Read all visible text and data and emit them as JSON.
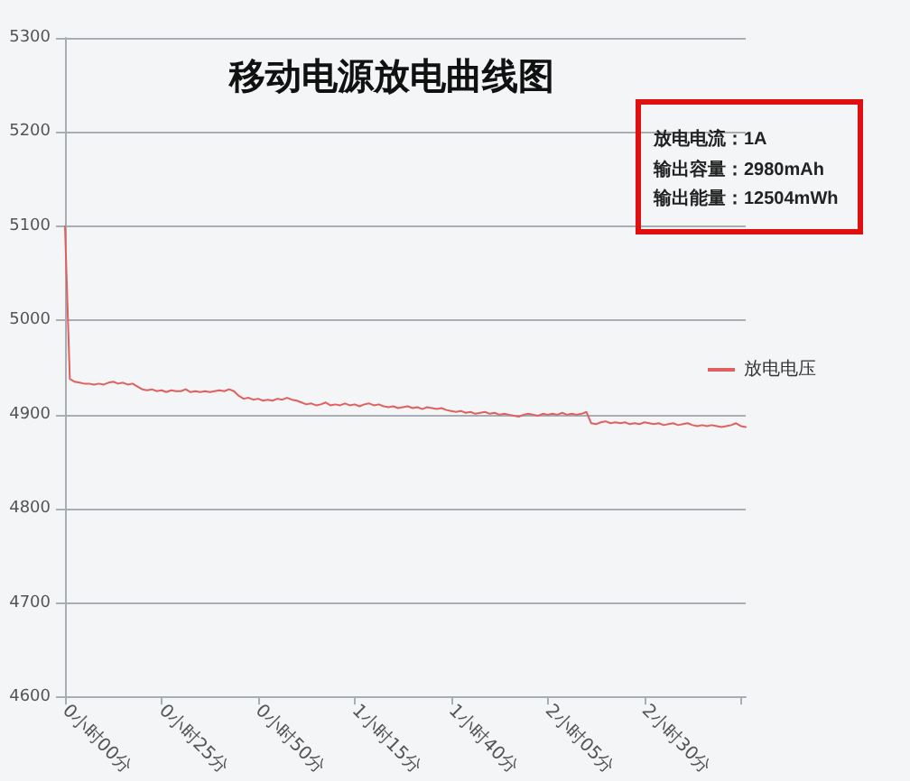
{
  "chart_data": {
    "type": "line",
    "title": "移动电源放电曲线图",
    "annotations": [
      "放电电流：1A",
      "输出容量：2980mAh",
      "输出能量：12504mWh"
    ],
    "categories": [
      "0小时00分",
      null,
      null,
      null,
      null,
      null,
      null,
      null,
      null,
      null,
      null,
      null,
      null,
      null,
      null,
      null,
      null,
      null,
      null,
      null,
      "0小时25分",
      null,
      null,
      null,
      null,
      null,
      null,
      null,
      null,
      null,
      null,
      null,
      null,
      null,
      null,
      null,
      null,
      null,
      null,
      null,
      "0小时50分",
      null,
      null,
      null,
      null,
      null,
      null,
      null,
      null,
      null,
      null,
      null,
      null,
      null,
      null,
      null,
      null,
      null,
      null,
      null,
      "1小时15分",
      null,
      null,
      null,
      null,
      null,
      null,
      null,
      null,
      null,
      null,
      null,
      null,
      null,
      null,
      null,
      null,
      null,
      null,
      null,
      "1小时40分",
      null,
      null,
      null,
      null,
      null,
      null,
      null,
      null,
      null,
      null,
      null,
      null,
      null,
      null,
      null,
      null,
      null,
      null,
      null,
      "2小时05分",
      null,
      null,
      null,
      null,
      null,
      null,
      null,
      null,
      null,
      null,
      null,
      null,
      null,
      null,
      null,
      null,
      null,
      null,
      null,
      "2小时30分",
      null,
      null,
      null,
      null,
      null,
      null,
      null,
      null,
      null,
      null,
      null,
      null,
      null,
      null,
      null,
      null,
      null,
      null,
      null,
      null,
      null
    ],
    "series": [
      {
        "name": "放电电压",
        "color": "#e06060",
        "values": [
          5100,
          4938,
          4935,
          4934,
          4933,
          4933,
          4932,
          4933,
          4932,
          4934,
          4935,
          4933,
          4934,
          4932,
          4933,
          4930,
          4927,
          4926,
          4927,
          4925,
          4926,
          4924,
          4926,
          4925,
          4925,
          4927,
          4924,
          4925,
          4924,
          4925,
          4924,
          4925,
          4926,
          4925,
          4927,
          4925,
          4920,
          4917,
          4918,
          4916,
          4917,
          4915,
          4916,
          4915,
          4917,
          4916,
          4918,
          4916,
          4915,
          4913,
          4911,
          4912,
          4910,
          4911,
          4913,
          4910,
          4911,
          4910,
          4912,
          4910,
          4911,
          4909,
          4911,
          4912,
          4910,
          4911,
          4909,
          4908,
          4909,
          4907,
          4908,
          4909,
          4907,
          4908,
          4906,
          4908,
          4907,
          4906,
          4907,
          4905,
          4904,
          4903,
          4904,
          4902,
          4903,
          4901,
          4902,
          4903,
          4901,
          4902,
          4900,
          4901,
          4900,
          4899,
          4898,
          4900,
          4901,
          4900,
          4899,
          4901,
          4900,
          4901,
          4900,
          4902,
          4900,
          4901,
          4900,
          4901,
          4903,
          4891,
          4890,
          4892,
          4893,
          4891,
          4892,
          4891,
          4892,
          4890,
          4891,
          4890,
          4892,
          4891,
          4890,
          4891,
          4889,
          4890,
          4891,
          4889,
          4890,
          4891,
          4889,
          4888,
          4889,
          4888,
          4889,
          4888,
          4887,
          4888,
          4889,
          4891,
          4888,
          4887
        ]
      }
    ],
    "ylim": [
      4600,
      5300
    ],
    "yticks": [
      4600,
      4700,
      4800,
      4900,
      5000,
      5100,
      5200,
      5300
    ],
    "grid": "y",
    "legend": "right",
    "marker": "none",
    "line_style": "solid"
  }
}
